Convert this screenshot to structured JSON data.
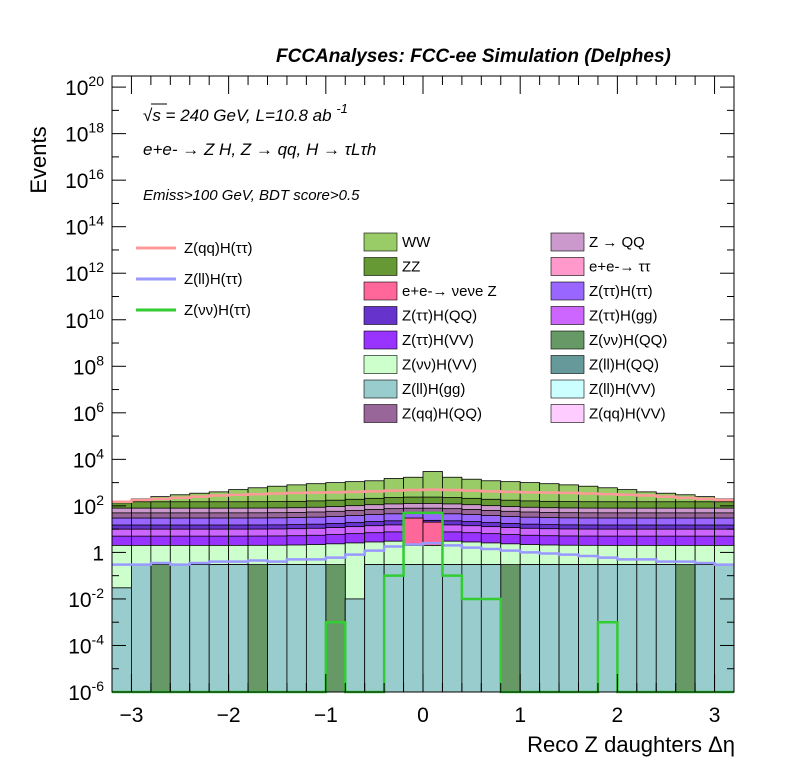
{
  "title": "FCCAnalyses: FCC-ee Simulation (Delphes)",
  "annotations": {
    "energy": "√s = 240 GeV, L=10.8 ab",
    "energy_exp": "-1",
    "process": "e+e- → Z H, Z → qq, H → τLτh",
    "selection": "Emiss>100 GeV, BDT score>0.5"
  },
  "chart_data": {
    "type": "histogram",
    "x_label": "Reco Z daughters Δη",
    "y_label": "Events",
    "x_range": [
      -3.2,
      3.2
    ],
    "y_range": [
      1e-06,
      3e+20
    ],
    "y_scale": "log",
    "bin_width": 0.2,
    "x_ticks": [
      "−3",
      "−2",
      "−1",
      "0",
      "1",
      "2",
      "3"
    ],
    "y_ticks": [
      "10-6",
      "10-4",
      "10-2",
      "1",
      "102",
      "104",
      "106",
      "108",
      "1010",
      "1012",
      "1014",
      "1016",
      "1018",
      "1020"
    ],
    "stacked_components": [
      {
        "name": "Z(ll)H(gg)",
        "color": "#99cccc",
        "level": 0.03
      },
      {
        "name": "Z(νν)H(QQ)",
        "color": "#669966",
        "level": 0.3
      },
      {
        "name": "Z(νν)H(VV)",
        "color": "#ccffcc",
        "level": 2
      },
      {
        "name": "Z(ττ)H(VV)",
        "color": "#9933ff",
        "level": 5
      },
      {
        "name": "Z(ττ)H(gg)",
        "color": "#cc66ff",
        "level": 10
      },
      {
        "name": "Z(ττ)H(QQ)",
        "color": "#6633cc",
        "level": 15
      },
      {
        "name": "Z(ττ)H(ττ)",
        "color": "#9966ff",
        "level": 30
      },
      {
        "name": "Z(qq)H(QQ)",
        "color": "#996699",
        "level": 50
      },
      {
        "name": "Z → QQ",
        "color": "#cc99cc",
        "level": 80
      },
      {
        "name": "ZZ",
        "color": "#669933",
        "level": 150
      },
      {
        "name": "WW",
        "color": "#99cc66",
        "level": 600
      }
    ],
    "stack_total": [
      150,
      200,
      250,
      300,
      350,
      400,
      500,
      600,
      700,
      800,
      900,
      1000,
      1100,
      1200,
      1500,
      1700,
      3000,
      1700,
      1400,
      1200,
      1100,
      1000,
      900,
      800,
      700,
      600,
      500,
      400,
      350,
      300,
      250,
      200
    ],
    "ww_center_shifted": [
      0,
      0,
      0,
      0,
      0,
      0,
      0,
      0,
      0,
      0,
      0,
      0,
      0,
      0,
      0,
      0,
      0,
      0,
      0,
      0,
      0,
      0,
      0,
      0,
      0,
      0,
      0,
      0,
      0,
      0,
      0,
      0
    ],
    "zll_hgg_levels": [
      0.03,
      0.3,
      1e-06,
      0.3,
      0.3,
      0.3,
      0.3,
      1e-06,
      0.3,
      0.3,
      0.3,
      1e-06,
      0.01,
      0.3,
      0.3,
      0.3,
      0.3,
      0.3,
      0.3,
      0.3,
      1e-06,
      0.3,
      0.3,
      0.3,
      0.3,
      0.3,
      0.3,
      0.3,
      0.3,
      1e-06,
      0.3,
      0.3
    ],
    "znn_hqq_levels": [
      0.03,
      0.3,
      0.3,
      0.3,
      0.3,
      0.3,
      0.01,
      0.3,
      0.3,
      0.3,
      0.3,
      0.3,
      0.01,
      0.3,
      1e-06,
      0.3,
      0.3,
      0.3,
      0.3,
      0.3,
      0.3,
      0.3,
      0.3,
      1e-06,
      0.3,
      0.3,
      0.3,
      0.3,
      0.3,
      0.3,
      0.3,
      0.3
    ],
    "overlay_lines": [
      {
        "name": "Z(qq)H(ττ)",
        "color": "#ff9999",
        "values": [
          150,
          180,
          200,
          220,
          250,
          280,
          300,
          320,
          340,
          360,
          370,
          380,
          400,
          420,
          450,
          480,
          500,
          480,
          450,
          420,
          400,
          380,
          370,
          360,
          340,
          320,
          300,
          280,
          250,
          220,
          200,
          180
        ]
      },
      {
        "name": "Z(ll)H(ττ)",
        "color": "#9999ff",
        "values": [
          0.3,
          0.3,
          0.35,
          0.3,
          0.35,
          0.4,
          0.4,
          0.45,
          0.4,
          0.5,
          0.5,
          0.6,
          0.8,
          1.2,
          1.8,
          2.2,
          2.5,
          2.0,
          1.6,
          1.4,
          1.2,
          1.0,
          0.9,
          0.8,
          0.7,
          0.6,
          0.5,
          0.5,
          0.4,
          0.4,
          0.35,
          0.3
        ]
      },
      {
        "name": "Z(νν)H(ττ)",
        "color": "#33cc33",
        "values": [
          1e-06,
          1e-06,
          1e-06,
          1e-06,
          1e-06,
          1e-06,
          1e-06,
          1e-06,
          1e-06,
          1e-06,
          1e-06,
          0.001,
          1e-06,
          1e-06,
          0.1,
          50,
          50,
          0.1,
          0.01,
          0.01,
          1e-06,
          1e-06,
          1e-06,
          1e-06,
          1e-06,
          0.001,
          1e-06,
          1e-06,
          1e-06,
          1e-06,
          1e-06,
          1e-06
        ]
      }
    ],
    "legend_lines": [
      "Z(qq)H(ττ)",
      "Z(ll)H(ττ)",
      "Z(νν)H(ττ)"
    ],
    "legend_fills": [
      [
        "WW",
        "#99cc66"
      ],
      [
        "Z → QQ",
        "#cc99cc"
      ],
      [
        "ZZ",
        "#669933"
      ],
      [
        "e+e-→ ττ",
        "#ff99cc"
      ],
      [
        "e+e-→ νeνe Z",
        "#ff6699"
      ],
      [
        "Z(ττ)H(ττ)",
        "#9966ff"
      ],
      [
        "Z(ττ)H(QQ)",
        "#6633cc"
      ],
      [
        "Z(ττ)H(gg)",
        "#cc66ff"
      ],
      [
        "Z(ττ)H(VV)",
        "#9933ff"
      ],
      [
        "Z(νν)H(QQ)",
        "#669966"
      ],
      [
        "Z(νν)H(VV)",
        "#ccffcc"
      ],
      [
        "Z(ll)H(QQ)",
        "#669999"
      ],
      [
        "Z(ll)H(gg)",
        "#99cccc"
      ],
      [
        "Z(ll)H(VV)",
        "#ccffff"
      ],
      [
        "Z(qq)H(QQ)",
        "#996699"
      ],
      [
        "Z(qq)H(VV)",
        "#ffccff"
      ]
    ]
  }
}
